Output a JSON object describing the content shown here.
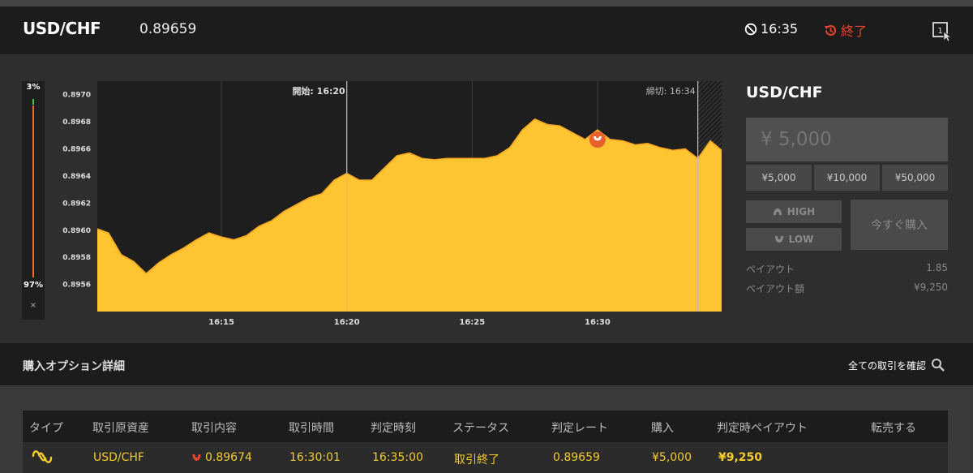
{
  "header": {
    "pair": "USD/CHF",
    "rate": "0.89659",
    "time": "16:35",
    "status": "終了",
    "expand_icon": "fullscreen-icon"
  },
  "sentiment": {
    "up_label": "3%",
    "down_label": "97%",
    "up_percent": 3,
    "down_percent": 97,
    "close_label": "×"
  },
  "chart_data": {
    "type": "area",
    "ylim": [
      0.8954,
      0.8971
    ],
    "yticks": [
      "0.8970",
      "0.8968",
      "0.8966",
      "0.8964",
      "0.8962",
      "0.8960",
      "0.8958",
      "0.8956"
    ],
    "ytick_values": [
      0.897,
      0.8968,
      0.8966,
      0.8964,
      0.8962,
      0.896,
      0.8958,
      0.8956
    ],
    "xticks": [
      "16:15",
      "16:20",
      "16:25",
      "16:30"
    ],
    "xtick_minutes": [
      15,
      20,
      25,
      30
    ],
    "xlim_minutes": [
      10.05,
      34.95
    ],
    "x_minutes": [
      10.05,
      10.5,
      11.0,
      11.5,
      12.0,
      12.5,
      13.0,
      13.5,
      14.0,
      14.5,
      15.0,
      15.5,
      16.0,
      16.5,
      17.0,
      17.5,
      18.0,
      18.5,
      19.0,
      19.5,
      20.0,
      20.5,
      21.0,
      21.5,
      22.0,
      22.5,
      23.0,
      23.5,
      24.0,
      24.5,
      25.0,
      25.5,
      26.0,
      26.5,
      27.0,
      27.5,
      28.0,
      28.5,
      29.0,
      29.5,
      30.0,
      30.5,
      31.0,
      31.5,
      32.0,
      32.5,
      33.0,
      33.5,
      34.0,
      34.5,
      34.95
    ],
    "values": [
      0.89601,
      0.89598,
      0.89582,
      0.89577,
      0.89568,
      0.89576,
      0.89582,
      0.89587,
      0.89593,
      0.89598,
      0.89595,
      0.89593,
      0.89596,
      0.89603,
      0.89607,
      0.89614,
      0.89619,
      0.89624,
      0.89627,
      0.89637,
      0.89642,
      0.89637,
      0.89637,
      0.89646,
      0.89655,
      0.89657,
      0.89653,
      0.89652,
      0.89653,
      0.89653,
      0.89653,
      0.89653,
      0.89655,
      0.89661,
      0.89674,
      0.89682,
      0.89678,
      0.89677,
      0.89672,
      0.89667,
      0.89674,
      0.89667,
      0.89666,
      0.89663,
      0.89664,
      0.89661,
      0.89659,
      0.8966,
      0.89653,
      0.89666,
      0.89659
    ],
    "start_label": "開始: 16:20",
    "start_minute": 20,
    "end_label": "締切: 16:34",
    "end_minute": 34,
    "marker": {
      "minute": 30,
      "value": 0.89674,
      "direction": "low"
    },
    "colors": {
      "fill": "#fec431",
      "line": "#f7a521",
      "marker": "#e8602c",
      "grid": "#3e3e3e",
      "background": "#1e1e1e"
    }
  },
  "panel": {
    "title": "USD/CHF",
    "amount_placeholder": "¥ 5,000",
    "presets": [
      "¥5,000",
      "¥10,000",
      "¥50,000"
    ],
    "high_label": "HIGH",
    "low_label": "LOW",
    "buy_now": "今すぐ購入",
    "payout_label": "ペイアウト",
    "payout_value": "1.85",
    "payout_amount_label": "ペイアウト額",
    "payout_amount_value": "¥9,250"
  },
  "section": {
    "title": "購入オプション詳細",
    "see_all": "全ての取引を確認"
  },
  "table": {
    "headers": [
      "タイプ",
      "取引原資産",
      "取引内容",
      "取引時間",
      "判定時刻",
      "ステータス",
      "判定レート",
      "購入",
      "判定時ペイアウト",
      "転売する"
    ],
    "row": {
      "type_icon": "highlow-type-icon",
      "asset": "USD/CHF",
      "direction_icon": "low-arrow-icon",
      "strike": "0.89674",
      "trade_time": "16:30:01",
      "expiry_time": "16:35:00",
      "status": "取引終了",
      "expiry_rate": "0.89659",
      "purchase": "¥5,000",
      "payout": "¥9,250"
    }
  }
}
